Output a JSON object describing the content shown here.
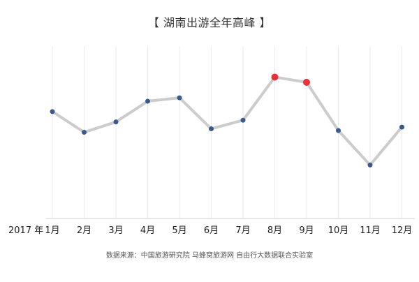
{
  "chart_data": {
    "type": "line",
    "title": "【 湖南出游全年高峰 】",
    "year_label": "2017 年",
    "categories": [
      "1月",
      "2月",
      "3月",
      "4月",
      "5月",
      "6月",
      "7月",
      "8月",
      "9月",
      "10月",
      "11月",
      "12月"
    ],
    "series": [
      {
        "values": [
          62,
          50,
          56,
          68,
          70,
          52,
          57,
          82,
          79,
          51,
          31,
          53
        ],
        "highlight_indices": [
          7,
          8
        ]
      }
    ],
    "ylim": [
      0,
      100
    ],
    "grid": "vertical",
    "colors": {
      "line": "#cccccc",
      "point": "#3a5a8c",
      "highlight": "#e8323a",
      "grid": "#ebebeb",
      "axis": "#cfcfcf"
    },
    "source_note": "数据来源：中国旅游研究院 马蜂窝旅游网 自由行大数据联合实验室"
  }
}
